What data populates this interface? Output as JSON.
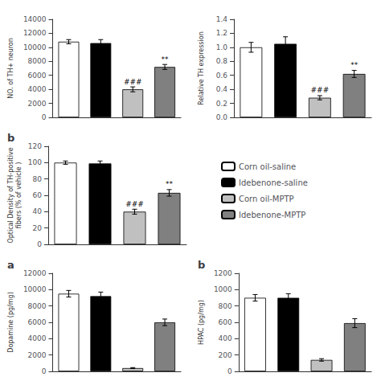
{
  "chart_data": [
    {
      "type": "bar",
      "categories": [
        "Corn oil-saline",
        "Idebenone-saline",
        "Corn oil-MPTP",
        "Idebenone-MPTP"
      ],
      "values": [
        10800,
        10600,
        4000,
        7200
      ],
      "errors": [
        300,
        500,
        350,
        350
      ],
      "colors": [
        "white",
        "black",
        "#c0c0c0",
        "#808080"
      ],
      "ylabel": "NO. of TH+ neuron",
      "ylim": [
        0,
        14000
      ],
      "yticks": [
        0,
        2000,
        4000,
        6000,
        8000,
        10000,
        12000,
        14000
      ],
      "annotations": [
        {
          "x": "Corn oil-MPTP",
          "text": "###"
        },
        {
          "x": "Idebenone-MPTP",
          "text": "**"
        }
      ],
      "grid": false,
      "tick_labels": "y"
    },
    {
      "type": "bar",
      "categories": [
        "Corn oil-saline",
        "Idebenone-saline",
        "Corn oil-MPTP",
        "Idebenone-MPTP"
      ],
      "values": [
        1.0,
        1.05,
        0.28,
        0.62
      ],
      "errors": [
        0.07,
        0.1,
        0.03,
        0.05
      ],
      "colors": [
        "white",
        "black",
        "#c0c0c0",
        "#808080"
      ],
      "ylabel": "Relative TH expression",
      "ylim": [
        0,
        1.4
      ],
      "yticks": [
        {
          "value": 0,
          "label": "0.0"
        },
        0.2,
        0.4,
        0.6,
        0.8,
        {
          "value": 1,
          "label": "1.0"
        },
        1.2,
        1.4
      ],
      "annotations": [
        {
          "x": "Corn oil-MPTP",
          "text": "###"
        },
        {
          "x": "Idebenone-MPTP",
          "text": "**"
        }
      ],
      "grid": false,
      "tick_labels": "y"
    },
    {
      "type": "bar",
      "title": "b",
      "categories": [
        "Corn oil-saline",
        "Idebenone-saline",
        "Corn oil-MPTP",
        "Idebenone-MPTP"
      ],
      "values": [
        100,
        99,
        40,
        63
      ],
      "errors": [
        2,
        3,
        3,
        4
      ],
      "colors": [
        "white",
        "black",
        "#c0c0c0",
        "#808080"
      ],
      "ylabel": "Optical Density of TH-positive\nfibers (% of vehicle )",
      "ylim": [
        0,
        120
      ],
      "yticks": [
        0,
        20,
        40,
        60,
        80,
        100,
        120
      ],
      "annotations": [
        {
          "x": "Corn oil-MPTP",
          "text": "###"
        },
        {
          "x": "Idebenone-MPTP",
          "text": "**"
        }
      ],
      "grid": false,
      "tick_labels": "y",
      "legend": "right"
    },
    {
      "type": "bar",
      "title": "a",
      "categories": [
        "Corn oil-saline",
        "Idebenone-saline",
        "Corn oil-MPTP",
        "Idebenone-MPTP"
      ],
      "values": [
        9500,
        9200,
        400,
        6000
      ],
      "errors": [
        400,
        500,
        60,
        400
      ],
      "colors": [
        "white",
        "black",
        "#c0c0c0",
        "#808080"
      ],
      "ylabel": "Dopamine (pg/mg)",
      "ylim": [
        0,
        12000
      ],
      "yticks": [
        0,
        2000,
        4000,
        6000,
        8000,
        10000,
        12000
      ],
      "grid": false,
      "tick_labels": "y"
    },
    {
      "type": "bar",
      "title": "b",
      "categories": [
        "Corn oil-saline",
        "Idebenone-saline",
        "Corn oil-MPTP",
        "Idebenone-MPTP"
      ],
      "values": [
        900,
        900,
        140,
        590
      ],
      "errors": [
        40,
        50,
        15,
        55
      ],
      "colors": [
        "white",
        "black",
        "#c0c0c0",
        "#808080"
      ],
      "ylabel": "HPAC (pg/mg)",
      "ylim": [
        0,
        1200
      ],
      "yticks": [
        0,
        200,
        400,
        600,
        800,
        1000,
        1200
      ],
      "grid": false,
      "tick_labels": "y"
    }
  ]
}
